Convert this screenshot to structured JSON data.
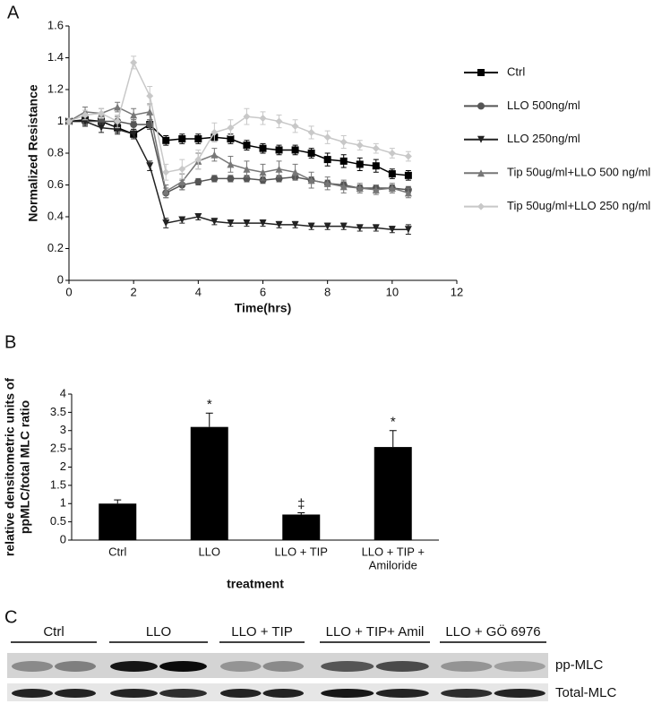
{
  "chart_data": [
    {
      "panel": "A",
      "type": "line",
      "xlabel": "Time(hrs)",
      "ylabel": "Normalized Resistance",
      "x": [
        0,
        0.5,
        1,
        1.5,
        2,
        2.5,
        3,
        3.5,
        4,
        4.5,
        5,
        5.5,
        6,
        6.5,
        7,
        7.5,
        8,
        8.5,
        9,
        9.5,
        10,
        10.5
      ],
      "xlim": [
        0,
        12
      ],
      "xticks": [
        0,
        2,
        4,
        6,
        8,
        10,
        12
      ],
      "ylim": [
        0,
        1.6
      ],
      "yticks": [
        0,
        0.2,
        0.4,
        0.6,
        0.8,
        1,
        1.2,
        1.4,
        1.6
      ],
      "legend": "right",
      "series": [
        {
          "name": "Ctrl",
          "color": "#000000",
          "marker": "square",
          "values": [
            1.0,
            1.01,
            1.0,
            0.96,
            0.92,
            0.98,
            0.88,
            0.89,
            0.89,
            0.9,
            0.89,
            0.85,
            0.83,
            0.82,
            0.82,
            0.8,
            0.76,
            0.75,
            0.73,
            0.72,
            0.67,
            0.66
          ],
          "errors": [
            0.02,
            0.03,
            0.03,
            0.03,
            0.02,
            0.03,
            0.03,
            0.03,
            0.03,
            0.02,
            0.03,
            0.03,
            0.03,
            0.03,
            0.03,
            0.03,
            0.04,
            0.04,
            0.04,
            0.04,
            0.03,
            0.03
          ]
        },
        {
          "name": "LLO 500ng/ml",
          "color": "#555555",
          "marker": "circle",
          "values": [
            1.0,
            1.0,
            1.0,
            1.0,
            0.98,
            0.98,
            0.55,
            0.6,
            0.62,
            0.64,
            0.64,
            0.64,
            0.63,
            0.64,
            0.65,
            0.63,
            0.61,
            0.6,
            0.58,
            0.58,
            0.58,
            0.57
          ],
          "errors": [
            0.02,
            0.03,
            0.03,
            0.03,
            0.03,
            0.03,
            0.03,
            0.03,
            0.02,
            0.02,
            0.02,
            0.02,
            0.02,
            0.02,
            0.02,
            0.02,
            0.02,
            0.02,
            0.02,
            0.02,
            0.02,
            0.02
          ]
        },
        {
          "name": "LLO 250ng/ml",
          "color": "#222222",
          "marker": "triangle-down",
          "values": [
            1.0,
            1.0,
            0.96,
            0.95,
            0.92,
            0.72,
            0.36,
            0.38,
            0.4,
            0.37,
            0.36,
            0.36,
            0.36,
            0.35,
            0.35,
            0.34,
            0.34,
            0.34,
            0.33,
            0.33,
            0.32,
            0.32
          ],
          "errors": [
            0.02,
            0.03,
            0.03,
            0.03,
            0.03,
            0.03,
            0.03,
            0.02,
            0.02,
            0.02,
            0.02,
            0.02,
            0.02,
            0.02,
            0.02,
            0.02,
            0.02,
            0.02,
            0.02,
            0.02,
            0.02,
            0.03
          ]
        },
        {
          "name": "Tip 50ug/ml+LLO 500 ng/ml",
          "color": "#777777",
          "marker": "triangle-up",
          "values": [
            1.0,
            1.06,
            1.05,
            1.09,
            1.04,
            1.06,
            0.56,
            0.62,
            0.75,
            0.79,
            0.73,
            0.7,
            0.68,
            0.7,
            0.68,
            0.63,
            0.61,
            0.59,
            0.58,
            0.57,
            0.58,
            0.55
          ],
          "errors": [
            0.02,
            0.03,
            0.03,
            0.03,
            0.04,
            0.05,
            0.04,
            0.05,
            0.05,
            0.04,
            0.05,
            0.05,
            0.05,
            0.05,
            0.05,
            0.05,
            0.04,
            0.04,
            0.03,
            0.03,
            0.03,
            0.03
          ]
        },
        {
          "name": "Tip 50ug/ml+LLO 250 ng/ml",
          "color": "#c8c8c8",
          "marker": "diamond",
          "values": [
            1.0,
            1.04,
            1.05,
            1.0,
            1.37,
            1.16,
            0.68,
            0.7,
            0.76,
            0.93,
            0.96,
            1.03,
            1.02,
            1.0,
            0.97,
            0.93,
            0.9,
            0.87,
            0.85,
            0.83,
            0.8,
            0.78
          ],
          "errors": [
            0.02,
            0.03,
            0.03,
            0.04,
            0.04,
            0.06,
            0.05,
            0.06,
            0.06,
            0.06,
            0.05,
            0.05,
            0.04,
            0.04,
            0.04,
            0.04,
            0.04,
            0.04,
            0.03,
            0.03,
            0.03,
            0.03
          ]
        }
      ]
    },
    {
      "panel": "B",
      "type": "bar",
      "xlabel": "treatment",
      "ylabel": [
        "relative densitometric units of",
        "ppMLC/total MLC ratio"
      ],
      "categories": [
        "Ctrl",
        "LLO",
        "LLO + TIP",
        [
          "LLO + TIP +",
          "Amiloride"
        ]
      ],
      "values": [
        1.0,
        3.1,
        0.7,
        2.55
      ],
      "errors": [
        0.1,
        0.38,
        0.05,
        0.45
      ],
      "annotations": [
        null,
        "*",
        "‡",
        "*"
      ],
      "color": "#000000",
      "ylim": [
        0,
        4
      ],
      "yticks": [
        0,
        0.5,
        1,
        1.5,
        2,
        2.5,
        3,
        3.5,
        4
      ]
    }
  ],
  "blot": {
    "panel": "C",
    "lanes": [
      "Ctrl",
      "LLO",
      "LLO + TIP",
      "LLO + TIP+ Amil",
      "LLO + GÖ 6976"
    ],
    "rows": [
      "pp-MLC",
      "Total-MLC"
    ]
  }
}
